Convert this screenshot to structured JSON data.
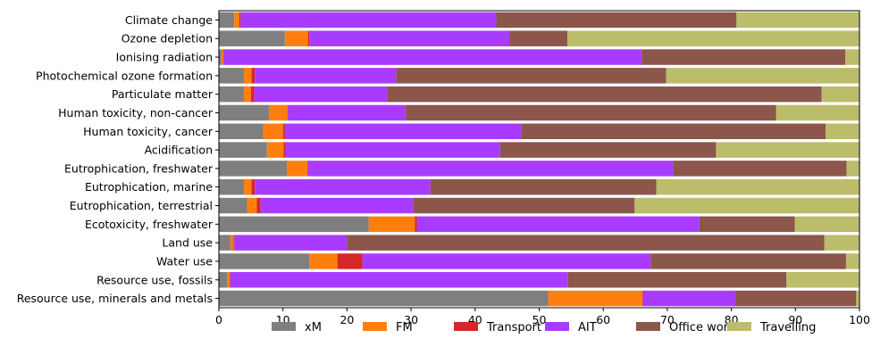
{
  "chart_data": {
    "type": "bar",
    "orientation": "horizontal",
    "stacked": true,
    "categories": [
      "Climate change",
      "Ozone depletion",
      "Ionising radiation",
      "Photochemical ozone formation",
      "Particulate matter",
      "Human toxicity, non-cancer",
      "Human toxicity, cancer",
      "Acidification",
      "Eutrophication, freshwater",
      "Eutrophication, marine",
      "Eutrophication, terrestrial",
      "Ecotoxicity, freshwater",
      "Land use",
      "Water use",
      "Resource use, fossils",
      "Resource use, minerals and metals"
    ],
    "series": [
      {
        "name": "xM",
        "color": "#7f7f7f",
        "values": [
          2.4,
          10.3,
          0.4,
          3.9,
          3.9,
          7.8,
          6.9,
          7.5,
          10.6,
          3.9,
          4.4,
          23.4,
          1.8,
          14.1,
          1.3,
          51.4
        ]
      },
      {
        "name": "FM",
        "color": "#ff7f0e",
        "values": [
          0.8,
          3.6,
          0.3,
          1.2,
          1.1,
          2.9,
          3.1,
          2.6,
          3.2,
          1.2,
          1.5,
          7.2,
          0.5,
          4.4,
          0.4,
          14.7
        ]
      },
      {
        "name": "Transport",
        "color": "#d62728",
        "values": [
          0.2,
          0.2,
          0.1,
          0.5,
          0.5,
          0.1,
          0.3,
          0.3,
          0.1,
          0.5,
          0.6,
          0.3,
          0.1,
          3.9,
          0.1,
          0.1
        ]
      },
      {
        "name": "AIT",
        "color": "#a93bff",
        "values": [
          39.9,
          31.3,
          65.2,
          22.1,
          20.8,
          18.4,
          36.9,
          33.5,
          57.0,
          27.4,
          23.8,
          44.1,
          17.6,
          45.0,
          52.7,
          14.4
        ]
      },
      {
        "name": "Office work",
        "color": "#8c564b",
        "values": [
          37.5,
          9.0,
          31.8,
          42.1,
          67.8,
          57.8,
          47.5,
          33.7,
          27.1,
          35.3,
          34.6,
          14.9,
          74.5,
          30.5,
          34.1,
          18.9
        ]
      },
      {
        "name": "Travelling",
        "color": "#bcbd6a",
        "values": [
          19.2,
          45.6,
          2.2,
          30.2,
          5.9,
          13.0,
          5.3,
          22.4,
          2.0,
          31.7,
          35.1,
          10.1,
          5.5,
          2.1,
          11.4,
          0.5
        ]
      }
    ],
    "xlim": [
      0,
      100
    ],
    "xticks": [
      0,
      10,
      20,
      30,
      40,
      50,
      60,
      70,
      80,
      90,
      100
    ],
    "xlabel": "",
    "ylabel": "",
    "title": "",
    "grid": false,
    "legend_position": "bottom"
  }
}
